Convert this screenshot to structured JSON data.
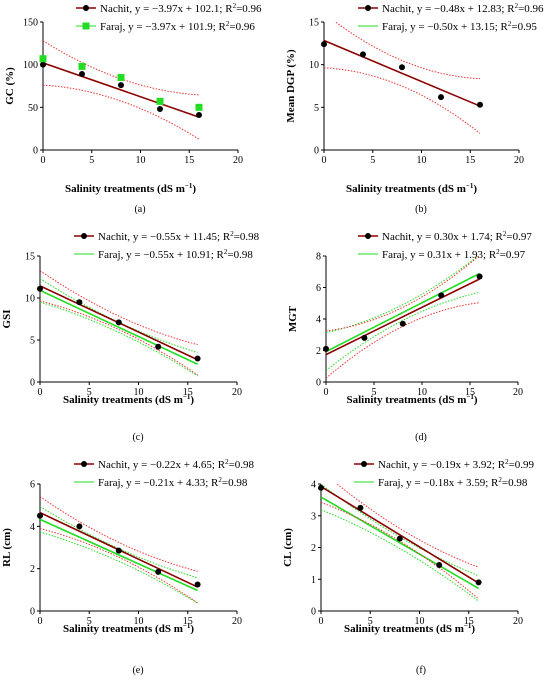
{
  "chart_data": [
    {
      "panel": "(a)",
      "type": "scatter",
      "xlabel": "Salinity treatments (dS m⁻¹)",
      "ylabel": "GC (%)",
      "xlim": [
        0,
        20
      ],
      "ylim": [
        0,
        150
      ],
      "xticks": [
        0,
        5,
        10,
        15,
        20
      ],
      "yticks": [
        0,
        50,
        100,
        150
      ],
      "series": [
        {
          "name": "Nachit, y = −3.97x + 102.1; R²=0.96",
          "marker": "circle",
          "color": "#000000",
          "line_color": "#8b0000",
          "ci_color": "#ee3333",
          "fit": {
            "slope": -3.97,
            "intercept": 102.1
          },
          "ci_halfwidth": [
            26,
            13,
            26
          ],
          "x": [
            0,
            4,
            8,
            12,
            16
          ],
          "y": [
            100,
            89,
            76,
            48,
            41
          ]
        },
        {
          "name": "Faraj, y = −3.97x + 101.9; R²=0.96",
          "marker": "square",
          "color": "#22dd22",
          "line_color": "#22dd22",
          "ci_color": "#5555aa",
          "fit": null,
          "ci_halfwidth": [
            26,
            13,
            26
          ],
          "x": [
            0,
            4,
            8,
            12,
            16
          ],
          "y": [
            107,
            98,
            85,
            57,
            50
          ]
        }
      ]
    },
    {
      "panel": "(b)",
      "type": "scatter",
      "xlabel": "Salinity treatments (dS m⁻¹)",
      "ylabel": "Mean DGP (%)",
      "xlim": [
        0,
        20
      ],
      "ylim": [
        0,
        15
      ],
      "xticks": [
        0,
        5,
        10,
        15,
        20
      ],
      "yticks": [
        0,
        5,
        10,
        15
      ],
      "series": [
        {
          "name": "Nachit, y = −0.48x + 12.83; R²=0.96",
          "marker": "circle",
          "color": "#000000",
          "line_color": "#8b0000",
          "ci_color": "#ee3333",
          "fit": {
            "slope": -0.48,
            "intercept": 12.83
          },
          "ci_halfwidth": [
            3.2,
            1.5,
            3.2
          ],
          "x": [
            0,
            4,
            8,
            12,
            16
          ],
          "y": [
            12.4,
            11.2,
            9.7,
            6.2,
            5.3
          ]
        },
        {
          "name": "Faraj, y = −0.50x + 13.15; R²=0.95",
          "marker": "none",
          "color": "#22dd22",
          "line_color": "#22dd22",
          "ci_color": "#22dd22",
          "fit": null,
          "ci_halfwidth": null,
          "x": [],
          "y": []
        }
      ]
    },
    {
      "panel": "(c)",
      "type": "scatter",
      "xlabel": "Salinity treatments (dS m⁻¹)",
      "ylabel": "GSI",
      "xlim": [
        0,
        20
      ],
      "ylim": [
        0,
        15
      ],
      "xticks": [
        0,
        5,
        10,
        15,
        20
      ],
      "yticks": [
        0,
        5,
        10,
        15
      ],
      "series": [
        {
          "name": "Nachit, y = −0.55x + 11.45; R²=0.98",
          "marker": "circle",
          "color": "#000000",
          "line_color": "#8b0000",
          "ci_color": "#ee3333",
          "fit": {
            "slope": -0.55,
            "intercept": 11.45
          },
          "ci_halfwidth": [
            1.8,
            0.8,
            1.8
          ],
          "x": [
            0,
            4,
            8,
            12,
            16
          ],
          "y": [
            11.1,
            9.5,
            7.1,
            4.2,
            2.8
          ]
        },
        {
          "name": "Faraj, y = −0.55x + 10.91; R²=0.98",
          "marker": "none",
          "color": "#22dd22",
          "line_color": "#22dd22",
          "ci_color": "#22dd22",
          "fit": {
            "slope": -0.55,
            "intercept": 10.91
          },
          "ci_halfwidth": [
            1.4,
            0.6,
            1.4
          ],
          "x": [],
          "y": []
        }
      ]
    },
    {
      "panel": "(d)",
      "type": "scatter",
      "xlabel": "Salinity treatments (dS m⁻¹)",
      "ylabel": "MGT",
      "xlim": [
        0,
        20
      ],
      "ylim": [
        0,
        8
      ],
      "xticks": [
        0,
        5,
        10,
        15,
        20
      ],
      "yticks": [
        0,
        2,
        4,
        6,
        8
      ],
      "series": [
        {
          "name": "Nachit, y = 0.30x + 1.74; R²=0.97",
          "marker": "circle",
          "color": "#000000",
          "line_color": "#8b0000",
          "ci_color": "#ee3333",
          "fit": {
            "slope": 0.3,
            "intercept": 1.74
          },
          "ci_halfwidth": [
            1.5,
            0.6,
            1.5
          ],
          "x": [
            0,
            4,
            8,
            12,
            16
          ],
          "y": [
            2.1,
            2.8,
            3.7,
            5.5,
            6.7
          ]
        },
        {
          "name": "Faraj, y = 0.31x + 1.93; R²=0.97",
          "marker": "none",
          "color": "#22dd22",
          "line_color": "#22dd22",
          "ci_color": "#22dd22",
          "fit": {
            "slope": 0.31,
            "intercept": 1.93
          },
          "ci_halfwidth": [
            1.2,
            0.5,
            1.2
          ],
          "x": [],
          "y": []
        }
      ]
    },
    {
      "panel": "(e)",
      "type": "scatter",
      "xlabel": "Salinity treatments (dS m⁻¹)",
      "ylabel": "RL (cm)",
      "xlim": [
        0,
        20
      ],
      "ylim": [
        0,
        6
      ],
      "xticks": [
        0,
        5,
        10,
        15,
        20
      ],
      "yticks": [
        0,
        2,
        4,
        6
      ],
      "series": [
        {
          "name": "Nachit, y = −0.22x + 4.65; R²=0.98",
          "marker": "circle",
          "color": "#000000",
          "line_color": "#8b0000",
          "ci_color": "#ee3333",
          "fit": {
            "slope": -0.22,
            "intercept": 4.65
          },
          "ci_halfwidth": [
            0.75,
            0.35,
            0.75
          ],
          "x": [
            0,
            4,
            8,
            12,
            16
          ],
          "y": [
            4.5,
            4.0,
            2.85,
            1.85,
            1.25
          ]
        },
        {
          "name": "Faraj, y = −0.21x + 4.33; R²=0.98",
          "marker": "none",
          "color": "#22dd22",
          "line_color": "#22dd22",
          "ci_color": "#22dd22",
          "fit": {
            "slope": -0.21,
            "intercept": 4.33
          },
          "ci_halfwidth": [
            0.6,
            0.3,
            0.6
          ],
          "x": [],
          "y": []
        }
      ]
    },
    {
      "panel": "(f)",
      "type": "scatter",
      "xlabel": "Salinity treatments (dS m⁻¹)",
      "ylabel": "CL (cm)",
      "xlim": [
        0,
        20
      ],
      "ylim": [
        0,
        4
      ],
      "xticks": [
        0,
        5,
        10,
        15,
        20
      ],
      "yticks": [
        0,
        1,
        2,
        3,
        4
      ],
      "series": [
        {
          "name": "Nachit, y = −0.19x + 3.92; R²=0.99",
          "marker": "circle",
          "color": "#000000",
          "line_color": "#8b0000",
          "ci_color": "#ee3333",
          "fit": {
            "slope": -0.19,
            "intercept": 3.92
          },
          "ci_halfwidth": [
            0.5,
            0.2,
            0.5
          ],
          "x": [
            0,
            4,
            8,
            12,
            16
          ],
          "y": [
            3.88,
            3.25,
            2.28,
            1.45,
            0.9
          ]
        },
        {
          "name": "Faraj, y = −0.18x + 3.59; R²=0.98",
          "marker": "none",
          "color": "#22dd22",
          "line_color": "#22dd22",
          "ci_color": "#22dd22",
          "fit": {
            "slope": -0.18,
            "intercept": 3.59
          },
          "ci_halfwidth": [
            0.4,
            0.18,
            0.4
          ],
          "x": [],
          "y": []
        }
      ]
    }
  ]
}
